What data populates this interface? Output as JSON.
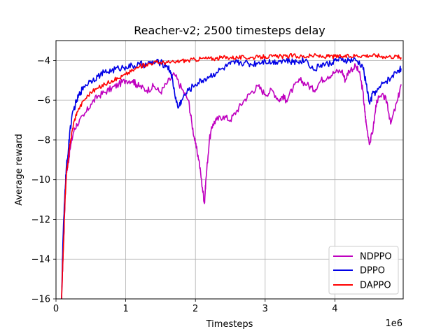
{
  "chart_data": {
    "type": "line",
    "title": "Reacher-v2;   2500 timesteps delay",
    "xlabel": "Timesteps",
    "ylabel": "Average reward",
    "x_offset_label": "1e6",
    "xlim": [
      0,
      4980000
    ],
    "ylim": [
      -16,
      -3
    ],
    "x_ticks": [
      0,
      1000000,
      2000000,
      3000000,
      4000000
    ],
    "x_tick_labels": [
      "0",
      "1",
      "2",
      "3",
      "4"
    ],
    "y_ticks": [
      -16,
      -14,
      -12,
      -10,
      -8,
      -6,
      -4
    ],
    "y_tick_labels": [
      "−16",
      "−14",
      "−12",
      "−10",
      "−8",
      "−6",
      "−4"
    ],
    "grid": true,
    "legend_position": "lower-right",
    "series": [
      {
        "name": "NDPPO",
        "color": "#bf00bf",
        "x": [
          80000,
          100000,
          130000,
          150000,
          170000,
          200000,
          250000,
          300000,
          400000,
          500000,
          600000,
          700000,
          800000,
          900000,
          1000000,
          1100000,
          1150000,
          1200000,
          1300000,
          1400000,
          1500000,
          1600000,
          1700000,
          1800000,
          1900000,
          1950000,
          2000000,
          2050000,
          2100000,
          2130000,
          2150000,
          2200000,
          2250000,
          2300000,
          2400000,
          2500000,
          2600000,
          2700000,
          2800000,
          2900000,
          3000000,
          3100000,
          3200000,
          3250000,
          3300000,
          3400000,
          3500000,
          3600000,
          3700000,
          3800000,
          3900000,
          4000000,
          4100000,
          4150000,
          4200000,
          4300000,
          4350000,
          4400000,
          4430000,
          4450000,
          4500000,
          4550000,
          4600000,
          4700000,
          4750000,
          4800000,
          4900000,
          4950000
        ],
        "y": [
          -16,
          -14,
          -11,
          -9.6,
          -9.3,
          -8.5,
          -7.6,
          -7.2,
          -6.8,
          -6.2,
          -5.8,
          -5.6,
          -5.4,
          -5.2,
          -5.0,
          -5.0,
          -5.2,
          -5.3,
          -5.5,
          -5.3,
          -5.6,
          -5.1,
          -4.7,
          -5.4,
          -6.0,
          -7.2,
          -8.2,
          -9.0,
          -10.4,
          -11.2,
          -10.0,
          -8.0,
          -7.2,
          -7.0,
          -6.8,
          -7.0,
          -6.5,
          -6.0,
          -5.6,
          -5.3,
          -5.7,
          -5.5,
          -6.0,
          -5.8,
          -6.0,
          -5.4,
          -5.0,
          -5.2,
          -5.5,
          -5.0,
          -4.8,
          -4.6,
          -4.5,
          -5.0,
          -4.5,
          -4.3,
          -4.6,
          -5.5,
          -6.6,
          -7.2,
          -8.2,
          -7.4,
          -6.0,
          -5.8,
          -6.1,
          -7.2,
          -6.0,
          -5.2
        ]
      },
      {
        "name": "DPPO",
        "color": "#0000e6",
        "x": [
          80000,
          100000,
          130000,
          150000,
          170000,
          200000,
          250000,
          300000,
          350000,
          400000,
          500000,
          600000,
          700000,
          800000,
          900000,
          1000000,
          1100000,
          1200000,
          1300000,
          1400000,
          1500000,
          1600000,
          1650000,
          1700000,
          1750000,
          1800000,
          1900000,
          2000000,
          2100000,
          2200000,
          2300000,
          2400000,
          2500000,
          2600000,
          2700000,
          2800000,
          2900000,
          3000000,
          3100000,
          3200000,
          3300000,
          3400000,
          3500000,
          3600000,
          3700000,
          3800000,
          3900000,
          4000000,
          4100000,
          4200000,
          4300000,
          4400000,
          4450000,
          4500000,
          4550000,
          4600000,
          4700000,
          4800000,
          4900000,
          4950000
        ],
        "y": [
          -16,
          -13,
          -10.5,
          -9.3,
          -8.8,
          -7.5,
          -6.5,
          -6.0,
          -5.6,
          -5.3,
          -5.0,
          -4.8,
          -4.6,
          -4.5,
          -4.4,
          -4.3,
          -4.3,
          -4.2,
          -4.2,
          -4.1,
          -4.1,
          -4.3,
          -4.6,
          -5.6,
          -6.4,
          -6.0,
          -5.5,
          -5.2,
          -5.0,
          -4.8,
          -4.6,
          -4.4,
          -4.2,
          -4.1,
          -4.1,
          -4.2,
          -4.1,
          -4.0,
          -4.1,
          -4.0,
          -4.0,
          -4.1,
          -4.0,
          -4.0,
          -4.5,
          -4.2,
          -4.2,
          -4.0,
          -4.0,
          -4.0,
          -4.0,
          -4.3,
          -5.2,
          -6.2,
          -5.6,
          -5.6,
          -5.1,
          -4.9,
          -4.5,
          -4.4
        ]
      },
      {
        "name": "DAPPO",
        "color": "#ff0000",
        "x": [
          80000,
          100000,
          130000,
          150000,
          170000,
          200000,
          250000,
          300000,
          400000,
          500000,
          600000,
          700000,
          800000,
          900000,
          1000000,
          1100000,
          1200000,
          1300000,
          1400000,
          1500000,
          1600000,
          1700000,
          1800000,
          1900000,
          2000000,
          2100000,
          2200000,
          2300000,
          2400000,
          2500000,
          2600000,
          2700000,
          2800000,
          2900000,
          3000000,
          3100000,
          3200000,
          3300000,
          3400000,
          3500000,
          3600000,
          3700000,
          3800000,
          3900000,
          4000000,
          4100000,
          4200000,
          4300000,
          4400000,
          4500000,
          4600000,
          4700000,
          4800000,
          4900000,
          4950000
        ],
        "y": [
          -16,
          -14,
          -11,
          -9.6,
          -9.2,
          -8.2,
          -7.2,
          -6.6,
          -6.0,
          -5.6,
          -5.4,
          -5.2,
          -5.0,
          -4.9,
          -4.7,
          -4.5,
          -4.3,
          -4.2,
          -4.1,
          -4.1,
          -4.1,
          -4.1,
          -4.0,
          -4.0,
          -3.95,
          -3.9,
          -3.9,
          -3.9,
          -3.85,
          -3.85,
          -3.85,
          -3.85,
          -3.85,
          -3.85,
          -3.8,
          -3.8,
          -3.8,
          -3.8,
          -3.75,
          -3.8,
          -3.8,
          -3.75,
          -3.8,
          -3.8,
          -3.8,
          -3.8,
          -3.8,
          -3.75,
          -3.75,
          -3.75,
          -3.75,
          -3.8,
          -3.8,
          -3.8,
          -3.85
        ]
      }
    ]
  }
}
